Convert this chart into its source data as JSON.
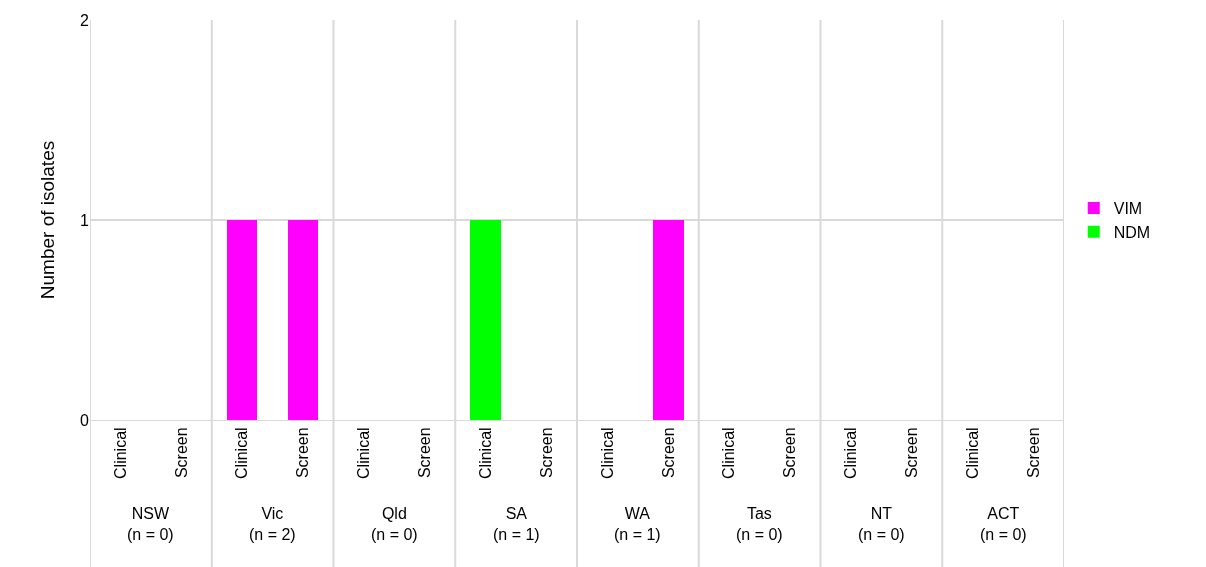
{
  "chart_data": {
    "type": "bar",
    "ylabel": "Number of isolates",
    "categories": [
      "Clinical",
      "Screen",
      "Clinical",
      "Screen",
      "Clinical",
      "Screen",
      "Clinical",
      "Screen",
      "Clinical",
      "Screen",
      "Clinical",
      "Screen",
      "Clinical",
      "Screen",
      "Clinical",
      "Screen"
    ],
    "annotations": [
      "NSW\n(n = 0)",
      "Vic\n(n = 2)",
      "Qld\n(n = 0)",
      "SA\n(n = 1)",
      "WA\n(n = 1)",
      "Tas\n(n = 0)",
      "NT\n(n = 0)",
      "ACT\n(n = 0)"
    ],
    "series": [
      {
        "name": "NDM",
        "color": "#00ff00",
        "values": [
          0,
          0,
          0,
          0,
          0,
          0,
          1,
          0,
          0,
          0,
          0,
          0,
          0,
          0,
          0,
          0
        ]
      },
      {
        "name": "VIM",
        "color": "#ff00ff",
        "values": [
          0,
          0,
          1,
          1,
          0,
          0,
          0,
          0,
          0,
          1,
          0,
          0,
          0,
          0,
          0,
          0
        ]
      }
    ],
    "stacked": true,
    "ylim": [
      0,
      2
    ],
    "yticks": [
      0,
      1,
      2
    ],
    "grid": "y",
    "legend": "right"
  }
}
